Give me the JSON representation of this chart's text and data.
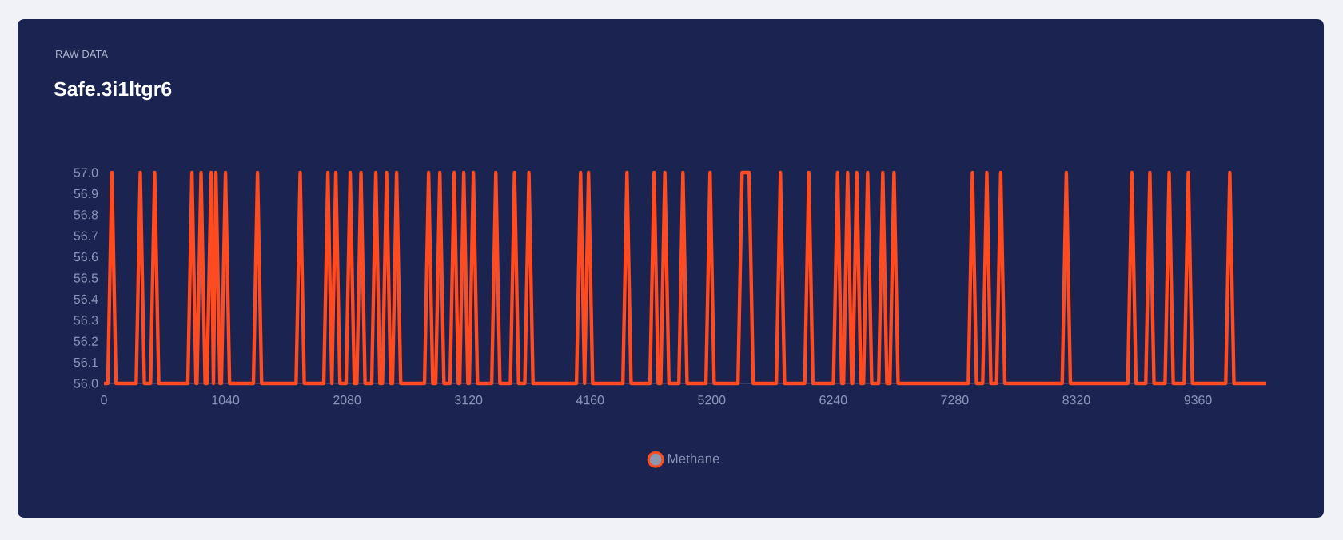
{
  "chart_data": {
    "type": "line",
    "subtitle": "RAW DATA",
    "title": "Safe.3i1ltgr6",
    "series": [
      {
        "name": "Methane",
        "color": "#ff4b1f",
        "x": [
          0,
          33,
          68,
          103,
          276,
          311,
          346,
          399,
          434,
          469,
          718,
          753,
          788,
          796,
          831,
          866,
          882,
          917,
          937,
          958,
          993,
          1005,
          1040,
          1075,
          1279,
          1314,
          1349,
          1644,
          1679,
          1714,
          1881,
          1916,
          1950,
          1984,
          2019,
          2072,
          2107,
          2142,
          2164,
          2199,
          2234,
          2291,
          2326,
          2361,
          2383,
          2418,
          2453,
          2469,
          2504,
          2539,
          2743,
          2778,
          2813,
          2839,
          2874,
          2909,
          2962,
          2997,
          3032,
          3044,
          3079,
          3114,
          3126,
          3161,
          3196,
          3318,
          3353,
          3388,
          3478,
          3513,
          3548,
          3601,
          3636,
          3671,
          4043,
          4078,
          4112,
          4146,
          4181,
          4440,
          4475,
          4510,
          4672,
          4707,
          4742,
          4764,
          4799,
          4834,
          4919,
          4954,
          4989,
          5151,
          5186,
          5221,
          5425,
          5460,
          5520,
          5555,
          5753,
          5788,
          5823,
          5996,
          6031,
          6066,
          6242,
          6277,
          6312,
          6328,
          6363,
          6398,
          6406,
          6441,
          6476,
          6499,
          6534,
          6569,
          6629,
          6664,
          6699,
          6725,
          6760,
          6795,
          7396,
          7431,
          7466,
          7519,
          7554,
          7589,
          7638,
          7673,
          7708,
          8199,
          8234,
          8269,
          8760,
          8795,
          8830,
          8914,
          8949,
          8984,
          9079,
          9114,
          9149,
          9243,
          9278,
          9313,
          9598,
          9633,
          9668,
          9945
        ],
        "values": [
          56,
          56,
          57,
          56,
          56,
          57,
          56,
          56,
          57,
          56,
          56,
          57,
          56,
          56,
          57,
          56,
          56,
          57,
          56,
          57,
          56,
          56,
          57,
          56,
          56,
          57,
          56,
          56,
          57,
          56,
          56,
          57,
          56,
          57,
          56,
          56,
          57,
          56,
          56,
          57,
          56,
          56,
          57,
          56,
          56,
          57,
          56,
          56,
          57,
          56,
          56,
          57,
          56,
          56,
          57,
          56,
          56,
          57,
          56,
          56,
          57,
          56,
          56,
          57,
          56,
          56,
          57,
          56,
          56,
          57,
          56,
          56,
          57,
          56,
          56,
          57,
          56,
          57,
          56,
          56,
          57,
          56,
          56,
          57,
          56,
          56,
          57,
          56,
          56,
          57,
          56,
          56,
          57,
          56,
          56,
          57,
          57,
          56,
          56,
          57,
          56,
          56,
          57,
          56,
          56,
          57,
          56,
          56,
          57,
          56,
          56,
          57,
          56,
          56,
          57,
          56,
          56,
          57,
          56,
          56,
          57,
          56,
          56,
          57,
          56,
          56,
          57,
          56,
          56,
          57,
          56,
          56,
          57,
          56,
          56,
          57,
          56,
          56,
          57,
          56,
          56,
          57,
          56,
          56,
          57,
          56,
          56,
          57,
          56,
          56
        ]
      }
    ],
    "xlim": [
      0,
      9945
    ],
    "xticks": [
      0,
      1040,
      2080,
      3120,
      4160,
      5200,
      6240,
      7280,
      8320,
      9360
    ],
    "ylim": [
      56,
      57
    ],
    "yticks": [
      {
        "value": 56,
        "label": "56.0"
      },
      56.1,
      56.2,
      56.3,
      56.4,
      56.5,
      56.6,
      56.7,
      56.8,
      56.9,
      {
        "value": 57,
        "label": "57.0"
      }
    ],
    "legend": "bottom"
  }
}
